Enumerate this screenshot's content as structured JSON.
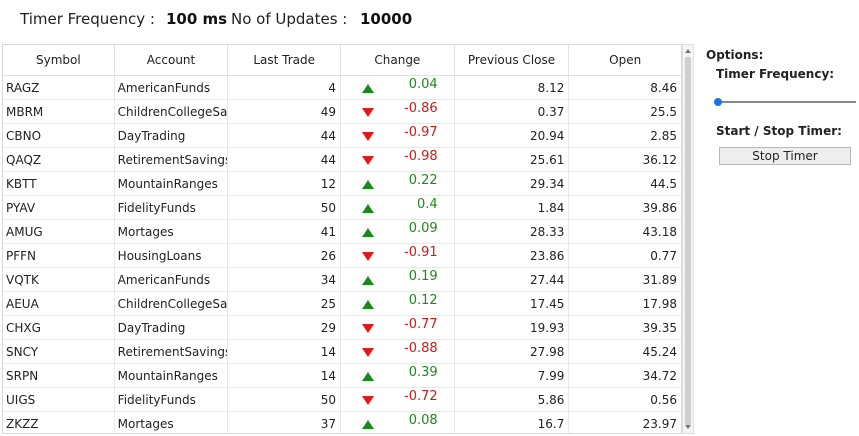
{
  "topbar": {
    "timer_frequency_label": "Timer Frequency :",
    "timer_frequency_value": "100 ms",
    "updates_label": "No of Updates :",
    "updates_value": "10000"
  },
  "grid": {
    "columns": [
      "Symbol",
      "Account",
      "Last Trade",
      "Change",
      "Previous Close",
      "Open"
    ],
    "rows": [
      {
        "symbol": "RAGZ",
        "account": "AmericanFunds",
        "last": "4",
        "dir": "up",
        "change": "0.04",
        "prev": "8.12",
        "open": "8.46"
      },
      {
        "symbol": "MBRM",
        "account": "ChildrenCollegeSavir",
        "last": "49",
        "dir": "down",
        "change": "-0.86",
        "prev": "0.37",
        "open": "25.5"
      },
      {
        "symbol": "CBNO",
        "account": "DayTrading",
        "last": "44",
        "dir": "down",
        "change": "-0.97",
        "prev": "20.94",
        "open": "2.85"
      },
      {
        "symbol": "QAQZ",
        "account": "RetirementSavings",
        "last": "44",
        "dir": "down",
        "change": "-0.98",
        "prev": "25.61",
        "open": "36.12"
      },
      {
        "symbol": "KBTT",
        "account": "MountainRanges",
        "last": "12",
        "dir": "up",
        "change": "0.22",
        "prev": "29.34",
        "open": "44.5"
      },
      {
        "symbol": "PYAV",
        "account": "FidelityFunds",
        "last": "50",
        "dir": "up",
        "change": "0.4",
        "prev": "1.84",
        "open": "39.86"
      },
      {
        "symbol": "AMUG",
        "account": "Mortages",
        "last": "41",
        "dir": "up",
        "change": "0.09",
        "prev": "28.33",
        "open": "43.18"
      },
      {
        "symbol": "PFFN",
        "account": "HousingLoans",
        "last": "26",
        "dir": "down",
        "change": "-0.91",
        "prev": "23.86",
        "open": "0.77"
      },
      {
        "symbol": "VQTK",
        "account": "AmericanFunds",
        "last": "34",
        "dir": "up",
        "change": "0.19",
        "prev": "27.44",
        "open": "31.89"
      },
      {
        "symbol": "AEUA",
        "account": "ChildrenCollegeSavir",
        "last": "25",
        "dir": "up",
        "change": "0.12",
        "prev": "17.45",
        "open": "17.98"
      },
      {
        "symbol": "CHXG",
        "account": "DayTrading",
        "last": "29",
        "dir": "down",
        "change": "-0.77",
        "prev": "19.93",
        "open": "39.35"
      },
      {
        "symbol": "SNCY",
        "account": "RetirementSavings",
        "last": "14",
        "dir": "down",
        "change": "-0.88",
        "prev": "27.98",
        "open": "45.24"
      },
      {
        "symbol": "SRPN",
        "account": "MountainRanges",
        "last": "14",
        "dir": "up",
        "change": "0.39",
        "prev": "7.99",
        "open": "34.72"
      },
      {
        "symbol": "UIGS",
        "account": "FidelityFunds",
        "last": "50",
        "dir": "down",
        "change": "-0.72",
        "prev": "5.86",
        "open": "0.56"
      },
      {
        "symbol": "ZKZZ",
        "account": "Mortages",
        "last": "37",
        "dir": "up",
        "change": "0.08",
        "prev": "16.7",
        "open": "23.97"
      }
    ]
  },
  "options": {
    "title": "Options:",
    "timer_frequency": "Timer Frequency:",
    "slider_value_fraction": 0,
    "start_stop_label": "Start / Stop Timer:",
    "stop_button": "Stop Timer"
  },
  "colors": {
    "up": "#1a8a1a",
    "down": "#d41818",
    "slider_accent": "#1a73e8"
  }
}
